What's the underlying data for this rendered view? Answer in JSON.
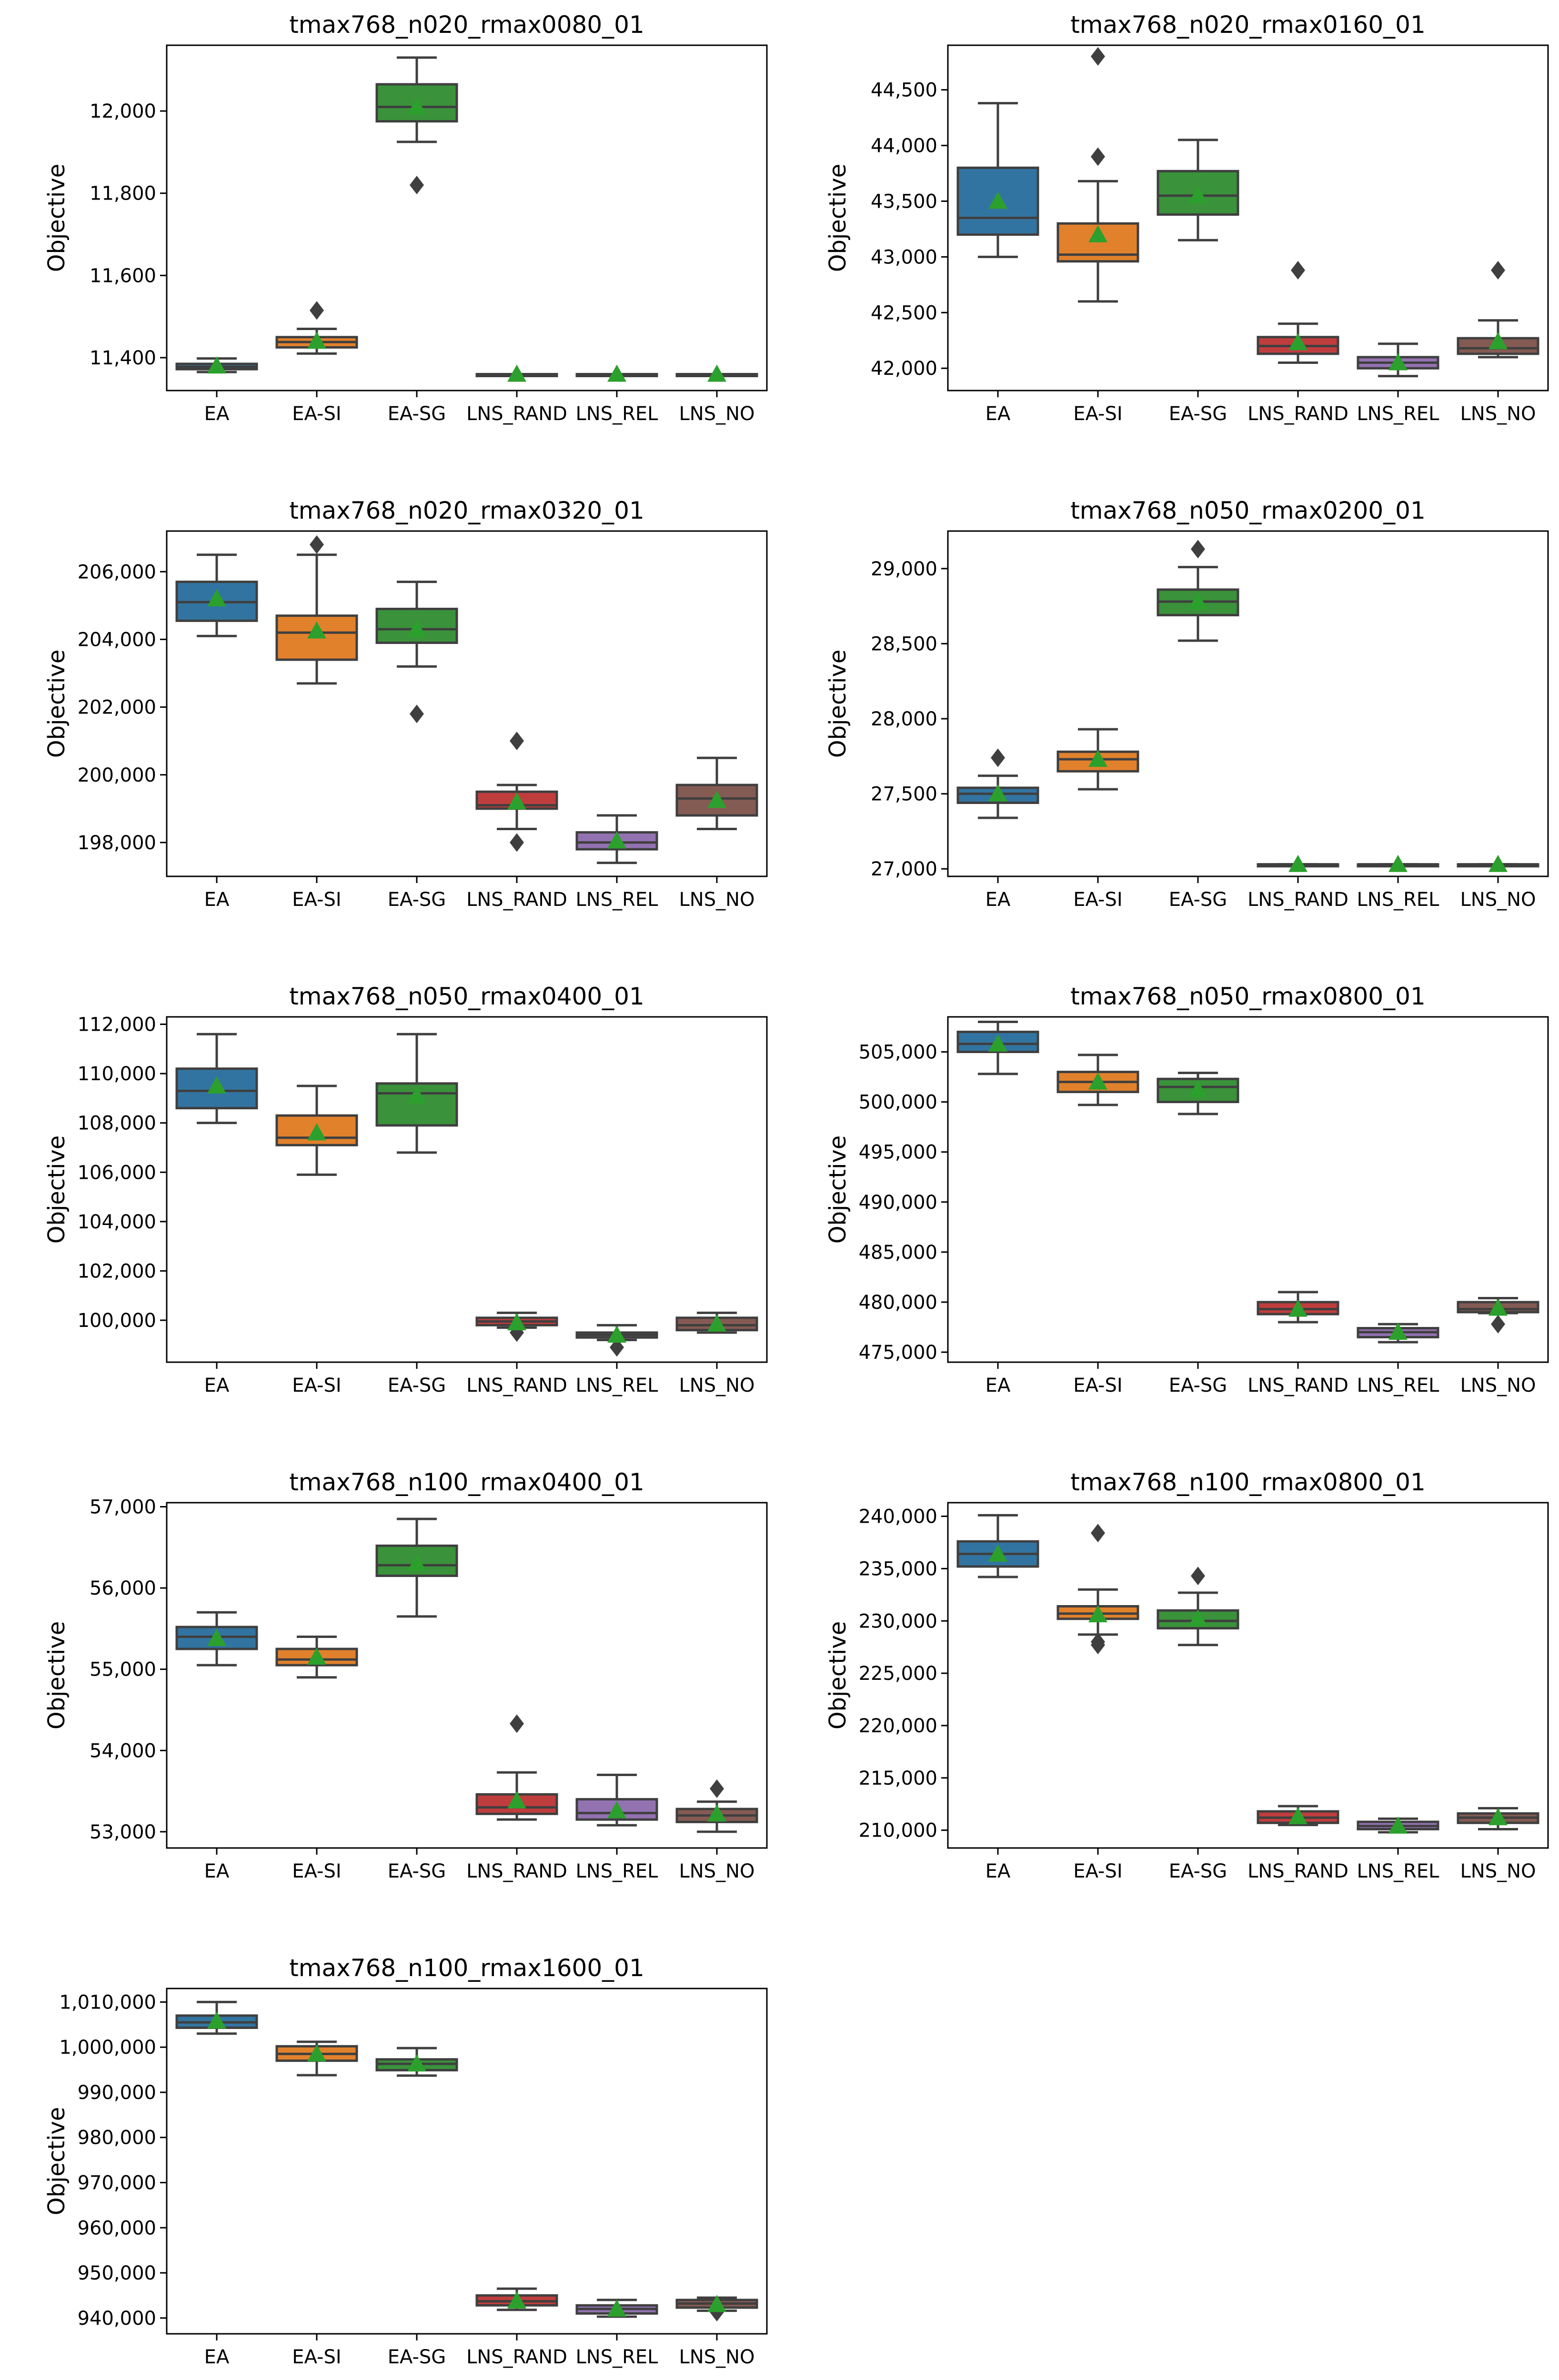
{
  "figure": {
    "y_axis_label": "Objective",
    "categories": [
      "EA",
      "EA-SI",
      "EA-SG",
      "LNS_RAND",
      "LNS_REL",
      "LNS_NO"
    ],
    "palette": {
      "EA": "#3274a1",
      "EA-SI": "#e1812c",
      "EA-SG": "#3a923a",
      "LNS_RAND": "#c03d3e",
      "LNS_REL": "#9372b2",
      "LNS_NO": "#845b53"
    },
    "whisker_color": "#3f3f3f",
    "mean_marker_color": "#2ca02c",
    "mean_marker": "triangle"
  },
  "chart_data": [
    {
      "type": "box",
      "title": "tmax768_n020_rmax0080_01",
      "ylabel": "Objective",
      "ylim": [
        11320,
        12160
      ],
      "yticks": [
        11400,
        11600,
        11800,
        12000
      ],
      "ytick_labels": [
        "11,400",
        "11,600",
        "11,800",
        "12,000"
      ],
      "boxes": [
        {
          "category": "EA",
          "whisker_low": 11365,
          "q1": 11372,
          "median": 11378,
          "q3": 11385,
          "whisker_high": 11398,
          "mean": 11380,
          "outliers": []
        },
        {
          "category": "EA-SI",
          "whisker_low": 11410,
          "q1": 11425,
          "median": 11438,
          "q3": 11450,
          "whisker_high": 11470,
          "mean": 11440,
          "outliers": [
            11515
          ]
        },
        {
          "category": "EA-SG",
          "whisker_low": 11925,
          "q1": 11975,
          "median": 12010,
          "q3": 12065,
          "whisker_high": 12130,
          "mean": 12010,
          "outliers": [
            11820
          ]
        },
        {
          "category": "LNS_RAND",
          "whisker_low": 11360,
          "q1": 11360,
          "median": 11360,
          "q3": 11360,
          "whisker_high": 11360,
          "mean": 11360,
          "outliers": []
        },
        {
          "category": "LNS_REL",
          "whisker_low": 11360,
          "q1": 11360,
          "median": 11360,
          "q3": 11360,
          "whisker_high": 11360,
          "mean": 11360,
          "outliers": []
        },
        {
          "category": "LNS_NO",
          "whisker_low": 11360,
          "q1": 11360,
          "median": 11360,
          "q3": 11360,
          "whisker_high": 11360,
          "mean": 11360,
          "outliers": []
        }
      ]
    },
    {
      "type": "box",
      "title": "tmax768_n020_rmax0160_01",
      "ylabel": "Objective",
      "ylim": [
        41800,
        44900
      ],
      "yticks": [
        42000,
        42500,
        43000,
        43500,
        44000,
        44500
      ],
      "ytick_labels": [
        "42,000",
        "42,500",
        "43,000",
        "43,500",
        "44,000",
        "44,500"
      ],
      "boxes": [
        {
          "category": "EA",
          "whisker_low": 43000,
          "q1": 43200,
          "median": 43350,
          "q3": 43800,
          "whisker_high": 44380,
          "mean": 43500,
          "outliers": []
        },
        {
          "category": "EA-SI",
          "whisker_low": 42600,
          "q1": 42960,
          "median": 43020,
          "q3": 43300,
          "whisker_high": 43680,
          "mean": 43200,
          "outliers": [
            43900,
            44800
          ]
        },
        {
          "category": "EA-SG",
          "whisker_low": 43150,
          "q1": 43380,
          "median": 43550,
          "q3": 43770,
          "whisker_high": 44050,
          "mean": 43550,
          "outliers": []
        },
        {
          "category": "LNS_RAND",
          "whisker_low": 42050,
          "q1": 42130,
          "median": 42200,
          "q3": 42280,
          "whisker_high": 42400,
          "mean": 42230,
          "outliers": [
            42880
          ]
        },
        {
          "category": "LNS_REL",
          "whisker_low": 41930,
          "q1": 42000,
          "median": 42050,
          "q3": 42100,
          "whisker_high": 42220,
          "mean": 42050,
          "outliers": []
        },
        {
          "category": "LNS_NO",
          "whisker_low": 42100,
          "q1": 42130,
          "median": 42180,
          "q3": 42270,
          "whisker_high": 42430,
          "mean": 42240,
          "outliers": [
            42880
          ]
        }
      ]
    },
    {
      "type": "box",
      "title": "tmax768_n020_rmax0320_01",
      "ylabel": "Objective",
      "ylim": [
        197000,
        207200
      ],
      "yticks": [
        198000,
        200000,
        202000,
        204000,
        206000
      ],
      "ytick_labels": [
        "198,000",
        "200,000",
        "202,000",
        "204,000",
        "206,000"
      ],
      "boxes": [
        {
          "category": "EA",
          "whisker_low": 204100,
          "q1": 204550,
          "median": 205100,
          "q3": 205700,
          "whisker_high": 206500,
          "mean": 205200,
          "outliers": []
        },
        {
          "category": "EA-SI",
          "whisker_low": 202700,
          "q1": 203400,
          "median": 204200,
          "q3": 204700,
          "whisker_high": 206500,
          "mean": 204250,
          "outliers": [
            206800
          ]
        },
        {
          "category": "EA-SG",
          "whisker_low": 203200,
          "q1": 203900,
          "median": 204300,
          "q3": 204900,
          "whisker_high": 205700,
          "mean": 204300,
          "outliers": [
            201800
          ]
        },
        {
          "category": "LNS_RAND",
          "whisker_low": 198400,
          "q1": 199000,
          "median": 199100,
          "q3": 199500,
          "whisker_high": 199700,
          "mean": 199200,
          "outliers": [
            201000,
            198000
          ]
        },
        {
          "category": "LNS_REL",
          "whisker_low": 197400,
          "q1": 197800,
          "median": 198000,
          "q3": 198300,
          "whisker_high": 198800,
          "mean": 198050,
          "outliers": []
        },
        {
          "category": "LNS_NO",
          "whisker_low": 198400,
          "q1": 198800,
          "median": 199300,
          "q3": 199700,
          "whisker_high": 200500,
          "mean": 199250,
          "outliers": []
        }
      ]
    },
    {
      "type": "box",
      "title": "tmax768_n050_rmax0200_01",
      "ylabel": "Objective",
      "ylim": [
        26950,
        29250
      ],
      "yticks": [
        27000,
        27500,
        28000,
        28500,
        29000
      ],
      "ytick_labels": [
        "27,000",
        "27,500",
        "28,000",
        "28,500",
        "29,000"
      ],
      "boxes": [
        {
          "category": "EA",
          "whisker_low": 27340,
          "q1": 27440,
          "median": 27500,
          "q3": 27540,
          "whisker_high": 27620,
          "mean": 27500,
          "outliers": [
            27740
          ]
        },
        {
          "category": "EA-SI",
          "whisker_low": 27530,
          "q1": 27650,
          "median": 27730,
          "q3": 27780,
          "whisker_high": 27930,
          "mean": 27730,
          "outliers": []
        },
        {
          "category": "EA-SG",
          "whisker_low": 28520,
          "q1": 28690,
          "median": 28780,
          "q3": 28860,
          "whisker_high": 29010,
          "mean": 28780,
          "outliers": [
            29130
          ]
        },
        {
          "category": "LNS_RAND",
          "whisker_low": 27030,
          "q1": 27030,
          "median": 27030,
          "q3": 27030,
          "whisker_high": 27030,
          "mean": 27030,
          "outliers": []
        },
        {
          "category": "LNS_REL",
          "whisker_low": 27030,
          "q1": 27030,
          "median": 27030,
          "q3": 27030,
          "whisker_high": 27030,
          "mean": 27030,
          "outliers": []
        },
        {
          "category": "LNS_NO",
          "whisker_low": 27030,
          "q1": 27030,
          "median": 27030,
          "q3": 27030,
          "whisker_high": 27030,
          "mean": 27030,
          "outliers": []
        }
      ]
    },
    {
      "type": "box",
      "title": "tmax768_n050_rmax0400_01",
      "ylabel": "Objective",
      "ylim": [
        98300,
        112300
      ],
      "yticks": [
        100000,
        102000,
        104000,
        106000,
        108000,
        110000,
        112000
      ],
      "ytick_labels": [
        "100,000",
        "102,000",
        "104,000",
        "106,000",
        "108,000",
        "110,000",
        "112,000"
      ],
      "boxes": [
        {
          "category": "EA",
          "whisker_low": 108000,
          "q1": 108600,
          "median": 109300,
          "q3": 110200,
          "whisker_high": 111600,
          "mean": 109500,
          "outliers": []
        },
        {
          "category": "EA-SI",
          "whisker_low": 105900,
          "q1": 107100,
          "median": 107400,
          "q3": 108300,
          "whisker_high": 109500,
          "mean": 107600,
          "outliers": []
        },
        {
          "category": "EA-SG",
          "whisker_low": 106800,
          "q1": 107900,
          "median": 109200,
          "q3": 109600,
          "whisker_high": 111600,
          "mean": 109100,
          "outliers": []
        },
        {
          "category": "LNS_RAND",
          "whisker_low": 99700,
          "q1": 99800,
          "median": 99950,
          "q3": 100100,
          "whisker_high": 100300,
          "mean": 99900,
          "outliers": [
            99500
          ]
        },
        {
          "category": "LNS_REL",
          "whisker_low": 99200,
          "q1": 99300,
          "median": 99400,
          "q3": 99500,
          "whisker_high": 99800,
          "mean": 99400,
          "outliers": [
            98900
          ]
        },
        {
          "category": "LNS_NO",
          "whisker_low": 99500,
          "q1": 99600,
          "median": 99800,
          "q3": 100100,
          "whisker_high": 100300,
          "mean": 99850,
          "outliers": []
        }
      ]
    },
    {
      "type": "box",
      "title": "tmax768_n050_rmax0800_01",
      "ylabel": "Objective",
      "ylim": [
        474000,
        508500
      ],
      "yticks": [
        475000,
        480000,
        485000,
        490000,
        495000,
        500000,
        505000
      ],
      "ytick_labels": [
        "475,000",
        "480,000",
        "485,000",
        "490,000",
        "495,000",
        "500,000",
        "505,000"
      ],
      "boxes": [
        {
          "category": "EA",
          "whisker_low": 502800,
          "q1": 505000,
          "median": 505800,
          "q3": 507000,
          "whisker_high": 508000,
          "mean": 505800,
          "outliers": []
        },
        {
          "category": "EA-SI",
          "whisker_low": 499700,
          "q1": 501000,
          "median": 502000,
          "q3": 503000,
          "whisker_high": 504700,
          "mean": 502000,
          "outliers": []
        },
        {
          "category": "EA-SG",
          "whisker_low": 498800,
          "q1": 500000,
          "median": 501500,
          "q3": 502300,
          "whisker_high": 502900,
          "mean": 501200,
          "outliers": []
        },
        {
          "category": "LNS_RAND",
          "whisker_low": 478000,
          "q1": 478800,
          "median": 479300,
          "q3": 480000,
          "whisker_high": 481000,
          "mean": 479300,
          "outliers": []
        },
        {
          "category": "LNS_REL",
          "whisker_low": 476000,
          "q1": 476500,
          "median": 477000,
          "q3": 477400,
          "whisker_high": 477800,
          "mean": 477000,
          "outliers": []
        },
        {
          "category": "LNS_NO",
          "whisker_low": 478900,
          "q1": 479000,
          "median": 479300,
          "q3": 480000,
          "whisker_high": 480400,
          "mean": 479400,
          "outliers": [
            477800
          ]
        }
      ]
    },
    {
      "type": "box",
      "title": "tmax768_n100_rmax0400_01",
      "ylabel": "Objective",
      "ylim": [
        52800,
        57050
      ],
      "yticks": [
        53000,
        54000,
        55000,
        56000,
        57000
      ],
      "ytick_labels": [
        "53,000",
        "54,000",
        "55,000",
        "56,000",
        "57,000"
      ],
      "boxes": [
        {
          "category": "EA",
          "whisker_low": 55050,
          "q1": 55250,
          "median": 55400,
          "q3": 55520,
          "whisker_high": 55700,
          "mean": 55380,
          "outliers": []
        },
        {
          "category": "EA-SI",
          "whisker_low": 54900,
          "q1": 55050,
          "median": 55120,
          "q3": 55250,
          "whisker_high": 55400,
          "mean": 55150,
          "outliers": []
        },
        {
          "category": "EA-SG",
          "whisker_low": 55650,
          "q1": 56150,
          "median": 56280,
          "q3": 56520,
          "whisker_high": 56850,
          "mean": 56300,
          "outliers": []
        },
        {
          "category": "LNS_RAND",
          "whisker_low": 53150,
          "q1": 53220,
          "median": 53300,
          "q3": 53460,
          "whisker_high": 53730,
          "mean": 53380,
          "outliers": [
            54330
          ]
        },
        {
          "category": "LNS_REL",
          "whisker_low": 53080,
          "q1": 53150,
          "median": 53230,
          "q3": 53400,
          "whisker_high": 53700,
          "mean": 53260,
          "outliers": []
        },
        {
          "category": "LNS_NO",
          "whisker_low": 53000,
          "q1": 53120,
          "median": 53200,
          "q3": 53280,
          "whisker_high": 53370,
          "mean": 53220,
          "outliers": [
            53530
          ]
        }
      ]
    },
    {
      "type": "box",
      "title": "tmax768_n100_rmax0800_01",
      "ylabel": "Objective",
      "ylim": [
        208300,
        241300
      ],
      "yticks": [
        210000,
        215000,
        220000,
        225000,
        230000,
        235000,
        240000
      ],
      "ytick_labels": [
        "210,000",
        "215,000",
        "220,000",
        "225,000",
        "230,000",
        "235,000",
        "240,000"
      ],
      "boxes": [
        {
          "category": "EA",
          "whisker_low": 234200,
          "q1": 235200,
          "median": 236400,
          "q3": 237600,
          "whisker_high": 240100,
          "mean": 236400,
          "outliers": []
        },
        {
          "category": "EA-SI",
          "whisker_low": 228700,
          "q1": 230200,
          "median": 230700,
          "q3": 231400,
          "whisker_high": 233000,
          "mean": 230600,
          "outliers": [
            238400,
            228000,
            227700
          ]
        },
        {
          "category": "EA-SG",
          "whisker_low": 227700,
          "q1": 229300,
          "median": 230000,
          "q3": 231000,
          "whisker_high": 232700,
          "mean": 230200,
          "outliers": [
            234300
          ]
        },
        {
          "category": "LNS_RAND",
          "whisker_low": 210500,
          "q1": 210700,
          "median": 211200,
          "q3": 211800,
          "whisker_high": 212300,
          "mean": 211300,
          "outliers": []
        },
        {
          "category": "LNS_REL",
          "whisker_low": 209800,
          "q1": 210100,
          "median": 210400,
          "q3": 210800,
          "whisker_high": 211100,
          "mean": 210400,
          "outliers": []
        },
        {
          "category": "LNS_NO",
          "whisker_low": 210100,
          "q1": 210700,
          "median": 211200,
          "q3": 211600,
          "whisker_high": 212100,
          "mean": 211200,
          "outliers": []
        }
      ]
    },
    {
      "type": "box",
      "title": "tmax768_n100_rmax1600_01",
      "ylabel": "Objective",
      "ylim": [
        936500,
        1013000
      ],
      "yticks": [
        940000,
        950000,
        960000,
        970000,
        980000,
        990000,
        1000000,
        1010000
      ],
      "ytick_labels": [
        "940,000",
        "950,000",
        "960,000",
        "970,000",
        "980,000",
        "990,000",
        "1,000,000",
        "1,010,000"
      ],
      "boxes": [
        {
          "category": "EA",
          "whisker_low": 1003000,
          "q1": 1004300,
          "median": 1005500,
          "q3": 1007000,
          "whisker_high": 1010000,
          "mean": 1005800,
          "outliers": []
        },
        {
          "category": "EA-SI",
          "whisker_low": 993800,
          "q1": 997000,
          "median": 998500,
          "q3": 1000200,
          "whisker_high": 1001200,
          "mean": 998500,
          "outliers": []
        },
        {
          "category": "EA-SG",
          "whisker_low": 993700,
          "q1": 994900,
          "median": 996300,
          "q3": 997300,
          "whisker_high": 999800,
          "mean": 996300,
          "outliers": []
        },
        {
          "category": "LNS_RAND",
          "whisker_low": 941800,
          "q1": 942800,
          "median": 943700,
          "q3": 945000,
          "whisker_high": 946500,
          "mean": 943800,
          "outliers": []
        },
        {
          "category": "LNS_REL",
          "whisker_low": 940300,
          "q1": 941000,
          "median": 942000,
          "q3": 942800,
          "whisker_high": 944000,
          "mean": 942000,
          "outliers": []
        },
        {
          "category": "LNS_NO",
          "whisker_low": 941600,
          "q1": 942300,
          "median": 943200,
          "q3": 944000,
          "whisker_high": 944500,
          "mean": 943000,
          "outliers": [
            941300
          ]
        }
      ]
    }
  ]
}
